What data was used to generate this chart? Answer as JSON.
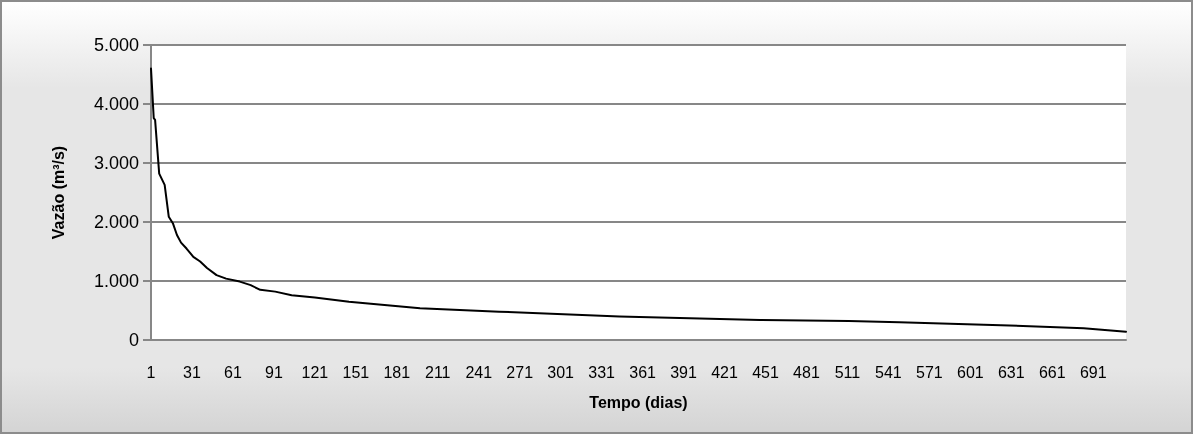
{
  "chart_data": {
    "type": "line",
    "xlabel": "Tempo (dias)",
    "ylabel": "Vazão (m³/s)",
    "xlim": [
      1,
      715
    ],
    "xticks": [
      1,
      31,
      61,
      91,
      121,
      151,
      181,
      211,
      241,
      271,
      301,
      331,
      361,
      391,
      421,
      451,
      481,
      511,
      541,
      571,
      601,
      631,
      661,
      691
    ],
    "ylim": [
      0,
      5000
    ],
    "yticks": [
      {
        "value": 0,
        "label": "0"
      },
      {
        "value": 1000,
        "label": "1.000"
      },
      {
        "value": 2000,
        "label": "2.000"
      },
      {
        "value": 3000,
        "label": "3.000"
      },
      {
        "value": 4000,
        "label": "4.000"
      },
      {
        "value": 5000,
        "label": "5.000"
      }
    ],
    "grid": "y",
    "marker": "none",
    "line_style": "solid",
    "series": [
      {
        "color": "#000000",
        "x": [
          1,
          3,
          4,
          7,
          11,
          14,
          17,
          20,
          23,
          27,
          32,
          37,
          42,
          49,
          56,
          66,
          74,
          81,
          92,
          104,
          121,
          146,
          178,
          198,
          256,
          344,
          447,
          512,
          549,
          611,
          684,
          715
        ],
        "values": [
          4600,
          3760,
          3730,
          2820,
          2630,
          2090,
          1980,
          1780,
          1650,
          1550,
          1410,
          1330,
          1220,
          1100,
          1040,
          990,
          930,
          850,
          820,
          760,
          720,
          650,
          580,
          540,
          480,
          400,
          340,
          320,
          300,
          260,
          200,
          140
        ]
      }
    ]
  }
}
